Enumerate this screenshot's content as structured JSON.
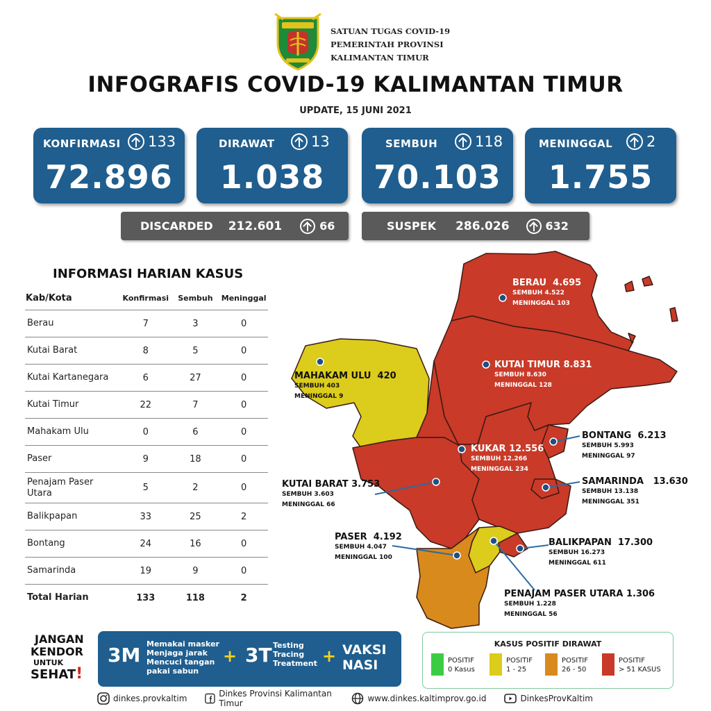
{
  "header": {
    "org_line1": "SATUAN TUGAS COVID-19",
    "org_line2": "PEMERINTAH PROVINSI",
    "org_line3": "KALIMANTAN TIMUR",
    "title": "INFOGRAFIS COVID-19 KALIMANTAN TIMUR",
    "update": "UPDATE, 15 JUNI 2021"
  },
  "stats": {
    "konfirmasi": {
      "label": "KONFIRMASI",
      "increase": "133",
      "value": "72.896"
    },
    "dirawat": {
      "label": "DIRAWAT",
      "increase": "13",
      "value": "1.038"
    },
    "sembuh": {
      "label": "SEMBUH",
      "increase": "118",
      "value": "70.103"
    },
    "meninggal": {
      "label": "MENINGGAL",
      "increase": "2",
      "value": "1.755"
    },
    "discarded": {
      "label": "DISCARDED",
      "value": "212.601",
      "increase": "66"
    },
    "suspek": {
      "label": "SUSPEK",
      "value": "286.026",
      "increase": "632"
    }
  },
  "table": {
    "title": "INFORMASI HARIAN KASUS",
    "headers": [
      "Kab/Kota",
      "Konfirmasi",
      "Sembuh",
      "Meninggal"
    ],
    "rows": [
      [
        "Berau",
        "7",
        "3",
        "0"
      ],
      [
        "Kutai Barat",
        "8",
        "5",
        "0"
      ],
      [
        "Kutai Kartanegara",
        "6",
        "27",
        "0"
      ],
      [
        "Kutai Timur",
        "22",
        "7",
        "0"
      ],
      [
        "Mahakam Ulu",
        "0",
        "6",
        "0"
      ],
      [
        "Paser",
        "9",
        "18",
        "0"
      ],
      [
        "Penajam Paser Utara",
        "5",
        "2",
        "0"
      ],
      [
        "Balikpapan",
        "33",
        "25",
        "2"
      ],
      [
        "Bontang",
        "24",
        "16",
        "0"
      ],
      [
        "Samarinda",
        "19",
        "9",
        "0"
      ]
    ],
    "total": [
      "Total Harian",
      "133",
      "118",
      "2"
    ]
  },
  "map": {
    "berau": {
      "name": "BERAU",
      "total": "4.695",
      "sembuh": "SEMBUH 4.522",
      "meninggal": "MENINGGAL 103"
    },
    "kutai_timur": {
      "name": "KUTAI TIMUR",
      "total": "8.831",
      "sembuh": "SEMBUH 8.630",
      "meninggal": "MENINGGAL 128"
    },
    "mahakam_ulu": {
      "name": "MAHAKAM ULU",
      "total": "420",
      "sembuh": "SEMBUH 403",
      "meninggal": "MENINGGAL 9"
    },
    "kukar": {
      "name": "KUKAR",
      "total": "12.556",
      "sembuh": "SEMBUH 12.266",
      "meninggal": "MENINGGAL 234"
    },
    "bontang": {
      "name": "BONTANG",
      "total": "6.213",
      "sembuh": "SEMBUH 5.993",
      "meninggal": "MENINGGAL 97"
    },
    "samarinda": {
      "name": "SAMARINDA",
      "total": "13.630",
      "sembuh": "SEMBUH 13.138",
      "meninggal": "MENINGGAL 351"
    },
    "kutai_barat": {
      "name": "KUTAI BARAT",
      "total": "3.753",
      "sembuh": "SEMBUH 3.603",
      "meninggal": "MENINGGAL 66"
    },
    "paser": {
      "name": "PASER",
      "total": "4.192",
      "sembuh": "SEMBUH 4.047",
      "meninggal": "MENINGGAL 100"
    },
    "balikpapan": {
      "name": "BALIKPAPAN",
      "total": "17.300",
      "sembuh": "SEMBUH 16.273",
      "meninggal": "MENINGGAL 611"
    },
    "ppu": {
      "name": "PENAJAM PASER UTARA",
      "total": "1.306",
      "sembuh": "SEMBUH 1.228",
      "meninggal": "MENINGGAL 56"
    },
    "colors": {
      "red": "#c93a28",
      "yellow": "#dccc1b",
      "orange": "#d98a1c",
      "green": "#3ccc44"
    }
  },
  "campaign": {
    "jangan": "JANGAN",
    "kendor": "KENDOR",
    "untuk": "UNTUK",
    "sehat": "SEHAT",
    "exclaim": "!",
    "m3": "3M",
    "m3_items": [
      "Memakai masker",
      "Menjaga jarak",
      "Mencuci tangan",
      "pakai sabun"
    ],
    "plus": "+",
    "t3": "3T",
    "t3_items": [
      "Testing",
      "Tracing",
      "Treatment"
    ],
    "vaksi_line1": "VAKSI",
    "vaksi_line2": "NASI"
  },
  "legend": {
    "title": "KASUS POSITIF DIRAWAT",
    "items": [
      {
        "line1": "POSITIF",
        "line2": "0 Kasus",
        "color": "#3ccc44"
      },
      {
        "line1": "POSITIF",
        "line2": "1 - 25",
        "color": "#dccc1b"
      },
      {
        "line1": "POSITIF",
        "line2": "26 - 50",
        "color": "#d98a1c"
      },
      {
        "line1": "POSITIF",
        "line2": "> 51 KASUS",
        "color": "#c93a28"
      }
    ]
  },
  "footer": {
    "instagram": "dinkes.provkaltim",
    "facebook": "Dinkes Provinsi Kalimantan Timur",
    "website": "www.dinkes.kaltimprov.go.id",
    "youtube": "DinkesProvKaltim"
  }
}
